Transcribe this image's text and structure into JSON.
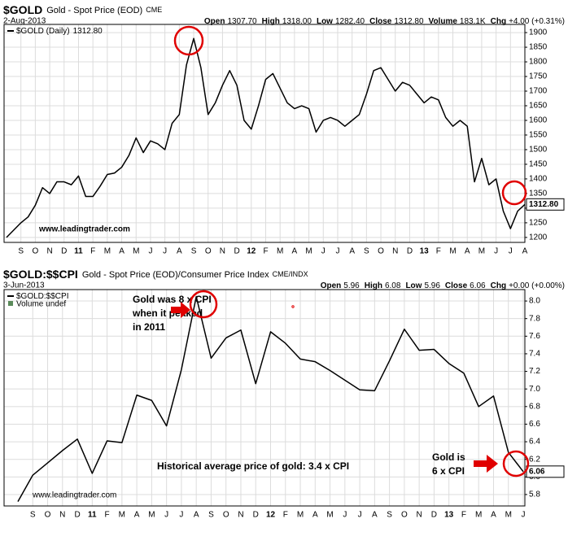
{
  "chart_data": [
    {
      "type": "line",
      "title": "$GOLD",
      "subtitle": "Gold - Spot Price (EOD)",
      "exchange": "CME",
      "date": "2-Aug-2013",
      "stats": [
        {
          "label": "Open",
          "value": "1307.70"
        },
        {
          "label": "High",
          "value": "1318.00"
        },
        {
          "label": "Low",
          "value": "1282.40"
        },
        {
          "label": "Close",
          "value": "1312.80"
        },
        {
          "label": "Volume",
          "value": "183.1K"
        },
        {
          "label": "Chg",
          "value": "+4.00 (+0.31%)"
        }
      ],
      "watermark": "www.leadingtrader.com",
      "categories": [
        null,
        null,
        "S",
        null,
        "O",
        null,
        "N",
        null,
        "D",
        null,
        "11",
        null,
        "F",
        null,
        "M",
        null,
        "A",
        null,
        "M",
        null,
        "J",
        null,
        "J",
        null,
        "A",
        null,
        "S",
        null,
        "O",
        null,
        "N",
        null,
        "D",
        null,
        "12",
        null,
        "F",
        null,
        "M",
        null,
        "A",
        null,
        "M",
        null,
        "J",
        null,
        "J",
        null,
        "A",
        null,
        "S",
        null,
        "O",
        null,
        "N",
        null,
        "D",
        null,
        "13",
        null,
        "F",
        null,
        "M",
        null,
        "A",
        null,
        "M",
        null,
        "J",
        null,
        "J",
        null,
        "A"
      ],
      "series": [
        {
          "name": "$GOLD (Daily)",
          "color": "#000000",
          "values": [
            1200,
            1225,
            1250,
            1270,
            1310,
            1370,
            1350,
            1390,
            1390,
            1380,
            1410,
            1340,
            1340,
            1375,
            1415,
            1420,
            1440,
            1480,
            1540,
            1490,
            1530,
            1520,
            1500,
            1590,
            1620,
            1790,
            1880,
            1780,
            1620,
            1660,
            1720,
            1770,
            1720,
            1600,
            1570,
            1650,
            1740,
            1760,
            1710,
            1660,
            1640,
            1650,
            1640,
            1560,
            1600,
            1610,
            1600,
            1580,
            1600,
            1620,
            1690,
            1770,
            1780,
            1740,
            1700,
            1730,
            1720,
            1690,
            1660,
            1680,
            1670,
            1610,
            1580,
            1600,
            1580,
            1390,
            1470,
            1380,
            1400,
            1290,
            1230,
            1290,
            1312.8
          ],
          "value_labels": [
            null,
            null,
            null,
            null,
            null,
            null,
            null,
            null,
            null,
            null,
            null,
            null,
            null,
            null,
            null,
            null,
            null,
            null,
            null,
            null,
            null,
            null,
            null,
            null,
            null,
            null,
            null,
            null,
            null,
            null,
            null,
            null,
            null,
            null,
            null,
            null,
            null,
            null,
            null,
            null,
            null,
            null,
            null,
            null,
            null,
            null,
            null,
            null,
            null,
            null,
            null,
            null,
            null,
            null,
            null,
            null,
            null,
            null,
            null,
            null,
            null,
            null,
            null,
            null,
            null,
            null,
            null,
            null,
            null,
            null,
            null,
            null,
            "1312.80"
          ]
        }
      ],
      "ylim": [
        1183,
        1928
      ],
      "yticks": [
        1200,
        1250,
        1300,
        1350,
        1400,
        1450,
        1500,
        1550,
        1600,
        1650,
        1700,
        1750,
        1800,
        1850,
        1900
      ],
      "grid": true
    },
    {
      "type": "line",
      "title": "$GOLD:$$CPI",
      "subtitle": "Gold - Spot Price (EOD)/Consumer Price Index",
      "exchange": "CME/INDX",
      "date": "3-Jun-2013",
      "stats": [
        {
          "label": "Open",
          "value": "5.96"
        },
        {
          "label": "High",
          "value": "6.08"
        },
        {
          "label": "Low",
          "value": "5.96"
        },
        {
          "label": "Close",
          "value": "6.06"
        },
        {
          "label": "Chg",
          "value": "+0.00 (+0.00%)"
        }
      ],
      "watermark": "www.leadingtrader.com",
      "legend_note": "Volume undef",
      "annotations": [
        {
          "lines": [
            "Gold was 8 x CPI",
            "when it peaked",
            "in 2011"
          ]
        },
        {
          "lines": [
            "Historical average price of gold: 3.4 x CPI"
          ]
        },
        {
          "lines": [
            "Gold is",
            "6 x CPI"
          ]
        }
      ],
      "categories": [
        null,
        "S",
        "O",
        "N",
        "D",
        "11",
        "F",
        "M",
        "A",
        "M",
        "J",
        "J",
        "A",
        "S",
        "O",
        "N",
        "D",
        "12",
        "F",
        "M",
        "A",
        "M",
        "J",
        "J",
        "A",
        "S",
        "O",
        "N",
        "D",
        "13",
        "F",
        "M",
        "A",
        "M",
        "J"
      ],
      "series": [
        {
          "name": "$GOLD:$$CPI",
          "color": "#000000",
          "values": [
            5.72,
            6.02,
            6.16,
            6.3,
            6.43,
            6.04,
            6.41,
            6.39,
            6.93,
            6.87,
            6.58,
            7.22,
            8.05,
            7.35,
            7.58,
            7.67,
            7.06,
            7.65,
            7.52,
            7.34,
            7.31,
            7.21,
            7.1,
            6.99,
            6.98,
            7.32,
            7.68,
            7.44,
            7.45,
            7.29,
            7.18,
            6.8,
            6.92,
            6.28,
            6.06
          ]
        }
      ],
      "ylim": [
        5.67,
        8.13
      ],
      "yticks": [
        5.8,
        {
          "value": 6,
          "label": "6.0"
        },
        6.2,
        6.4,
        6.6,
        6.8,
        {
          "value": 7,
          "label": "7.0"
        },
        7.2,
        7.4,
        7.6,
        7.8,
        {
          "value": 8,
          "label": "8.0"
        }
      ],
      "grid": true
    }
  ]
}
